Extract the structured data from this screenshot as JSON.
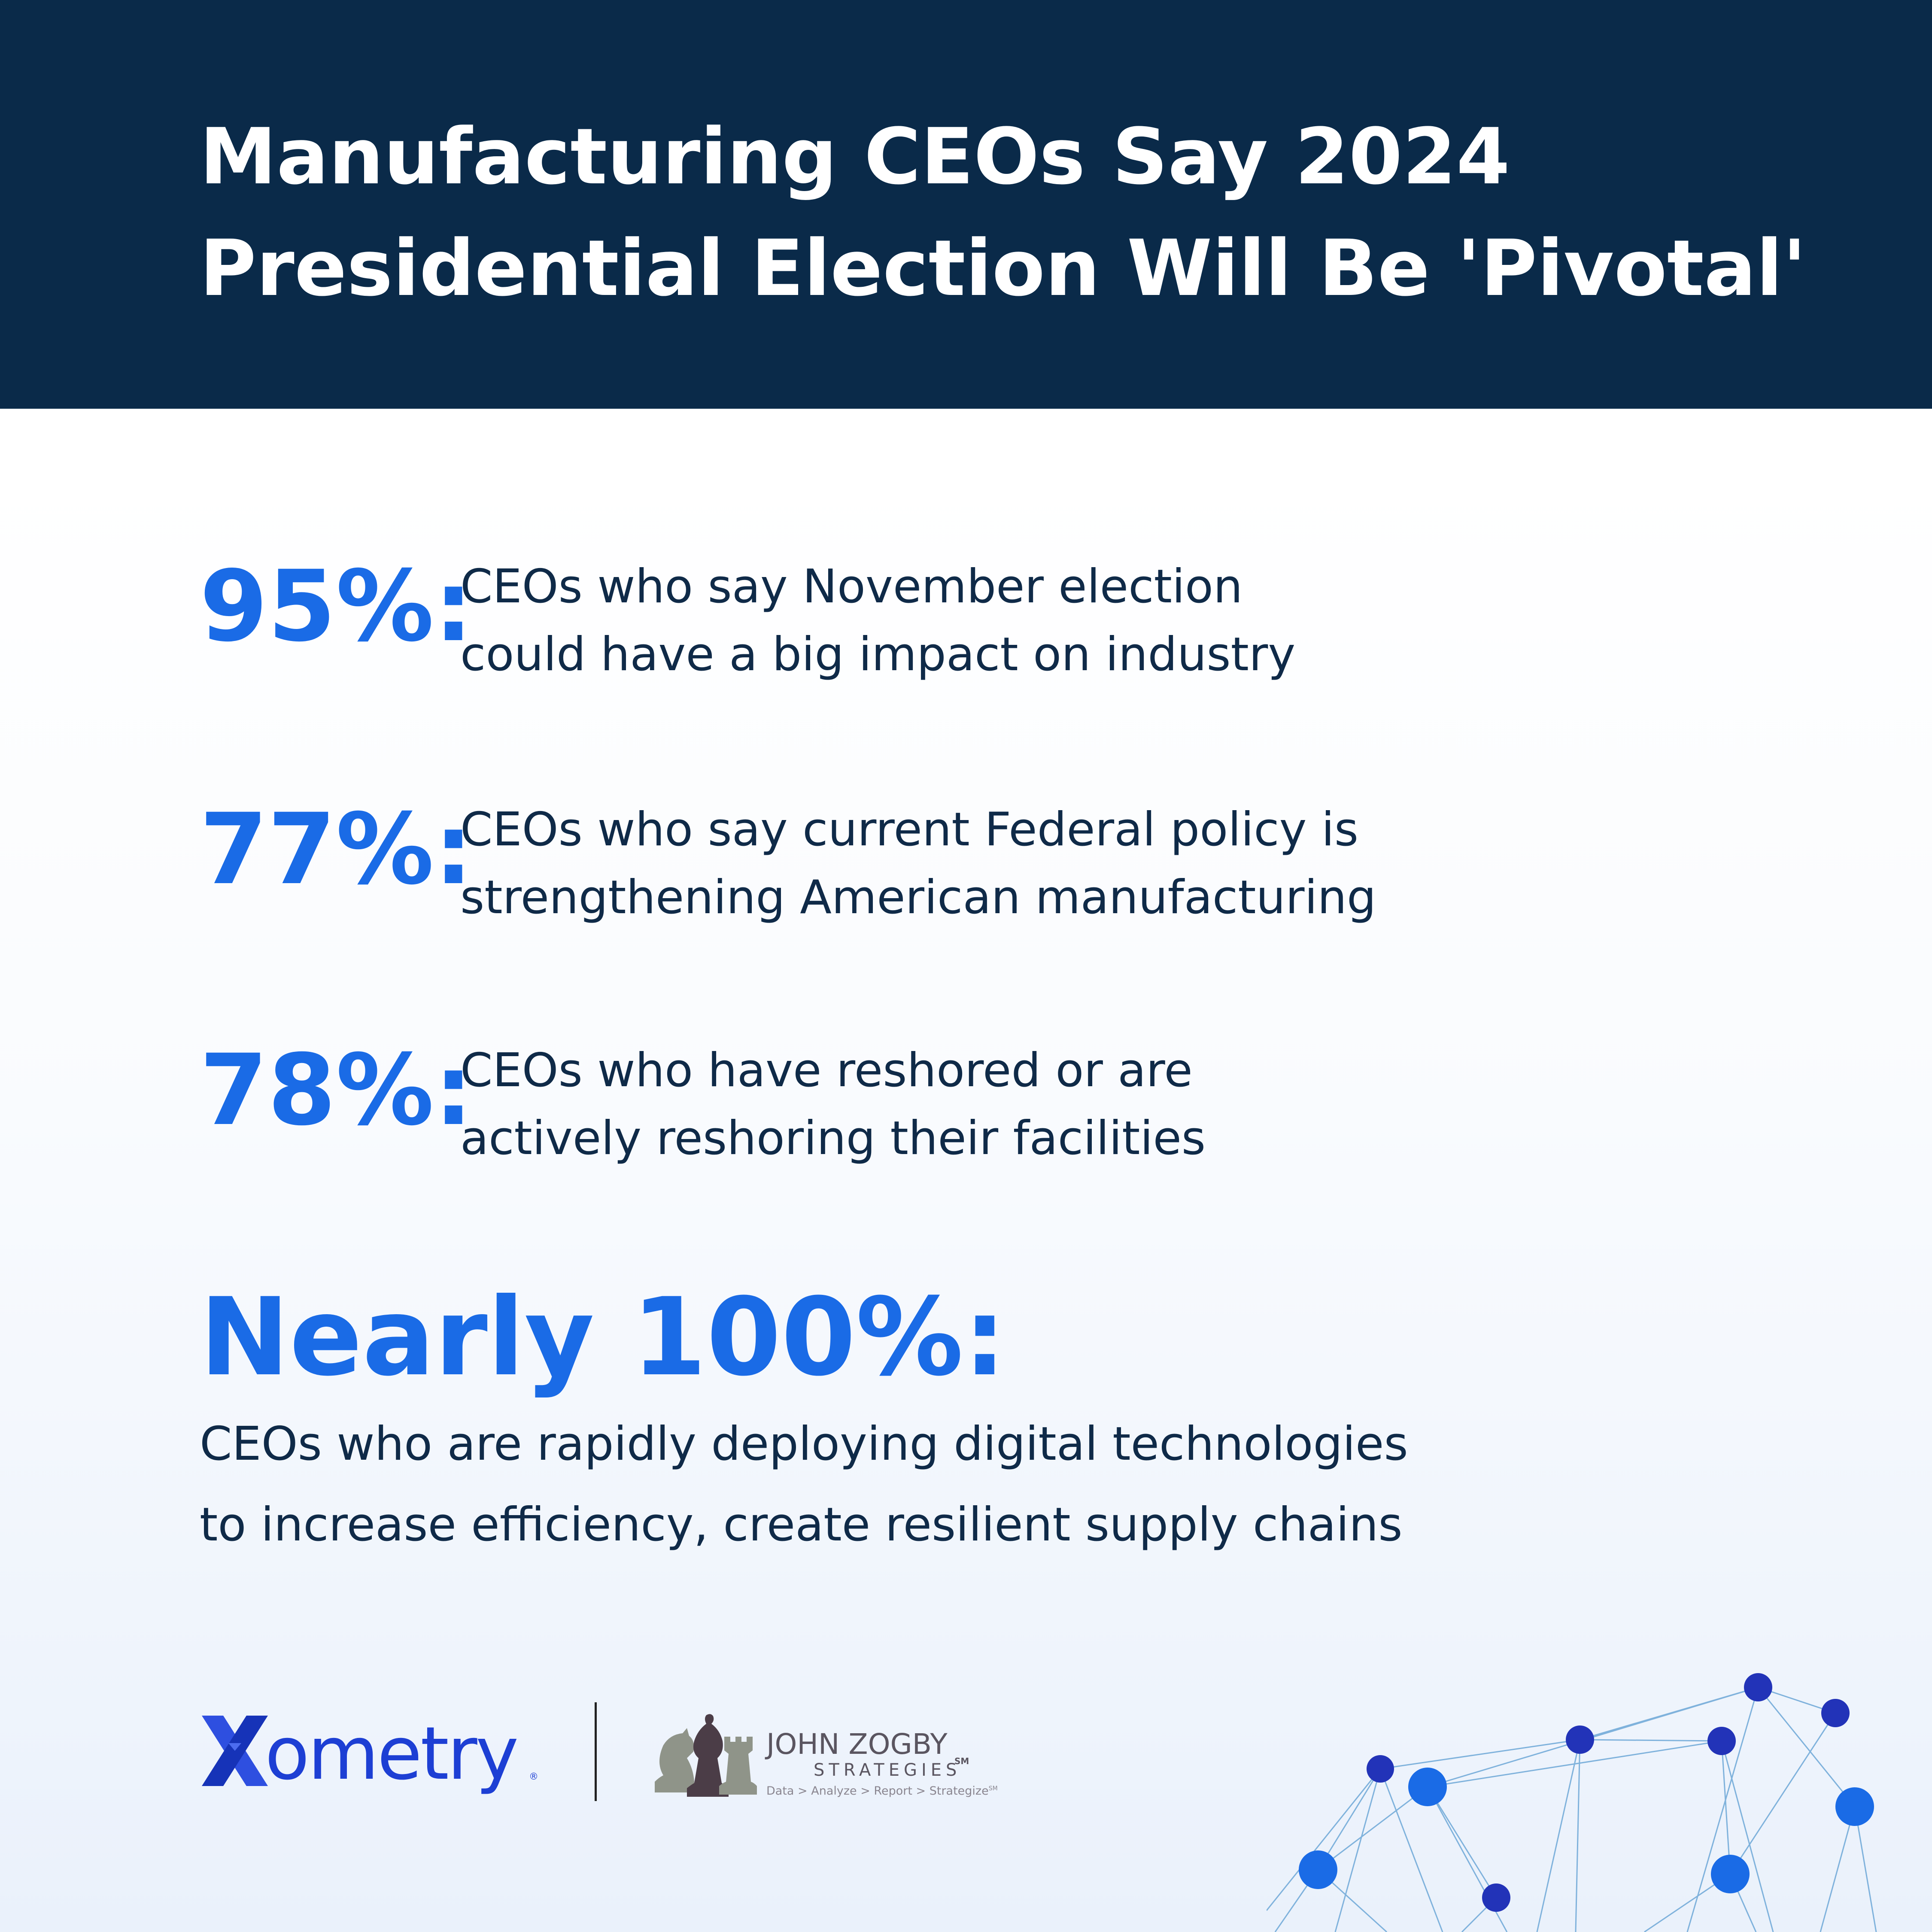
{
  "header": {
    "title_line1": "Manufacturing CEOs Say 2024",
    "title_line2": "Presidential Election Will Be 'Pivotal'"
  },
  "stats": [
    {
      "percent": "95%:",
      "line1": "CEOs who say November election",
      "line2": "could have a big impact on industry"
    },
    {
      "percent": "77%:",
      "line1": "CEOs who say current Federal policy is",
      "line2": "strengthening American manufacturing"
    },
    {
      "percent": "78%:",
      "line1": "CEOs who have reshored or are",
      "line2": "actively reshoring their facilities"
    }
  ],
  "highlight": {
    "percent": "Nearly 100%:",
    "line1": "CEOs who are rapidly deploying digital technologies",
    "line2": "to increase efficiency, create resilient supply chains"
  },
  "logos": {
    "xometry": {
      "name": "ometry",
      "reg": "®"
    },
    "zogby": {
      "name": "JOHN ZOGBY",
      "sub": "STRATEGIES",
      "sm": "SM",
      "tagline": "Data > Analyze > Report > Strategize",
      "tagline_sm": "SM"
    }
  },
  "colors": {
    "header_bg": "#0a2a49",
    "accent_blue": "#1a6be6",
    "text_dark": "#0f2a48",
    "xometry_blue": "#1d3fd4",
    "zogby_gray": "#5a5560"
  }
}
